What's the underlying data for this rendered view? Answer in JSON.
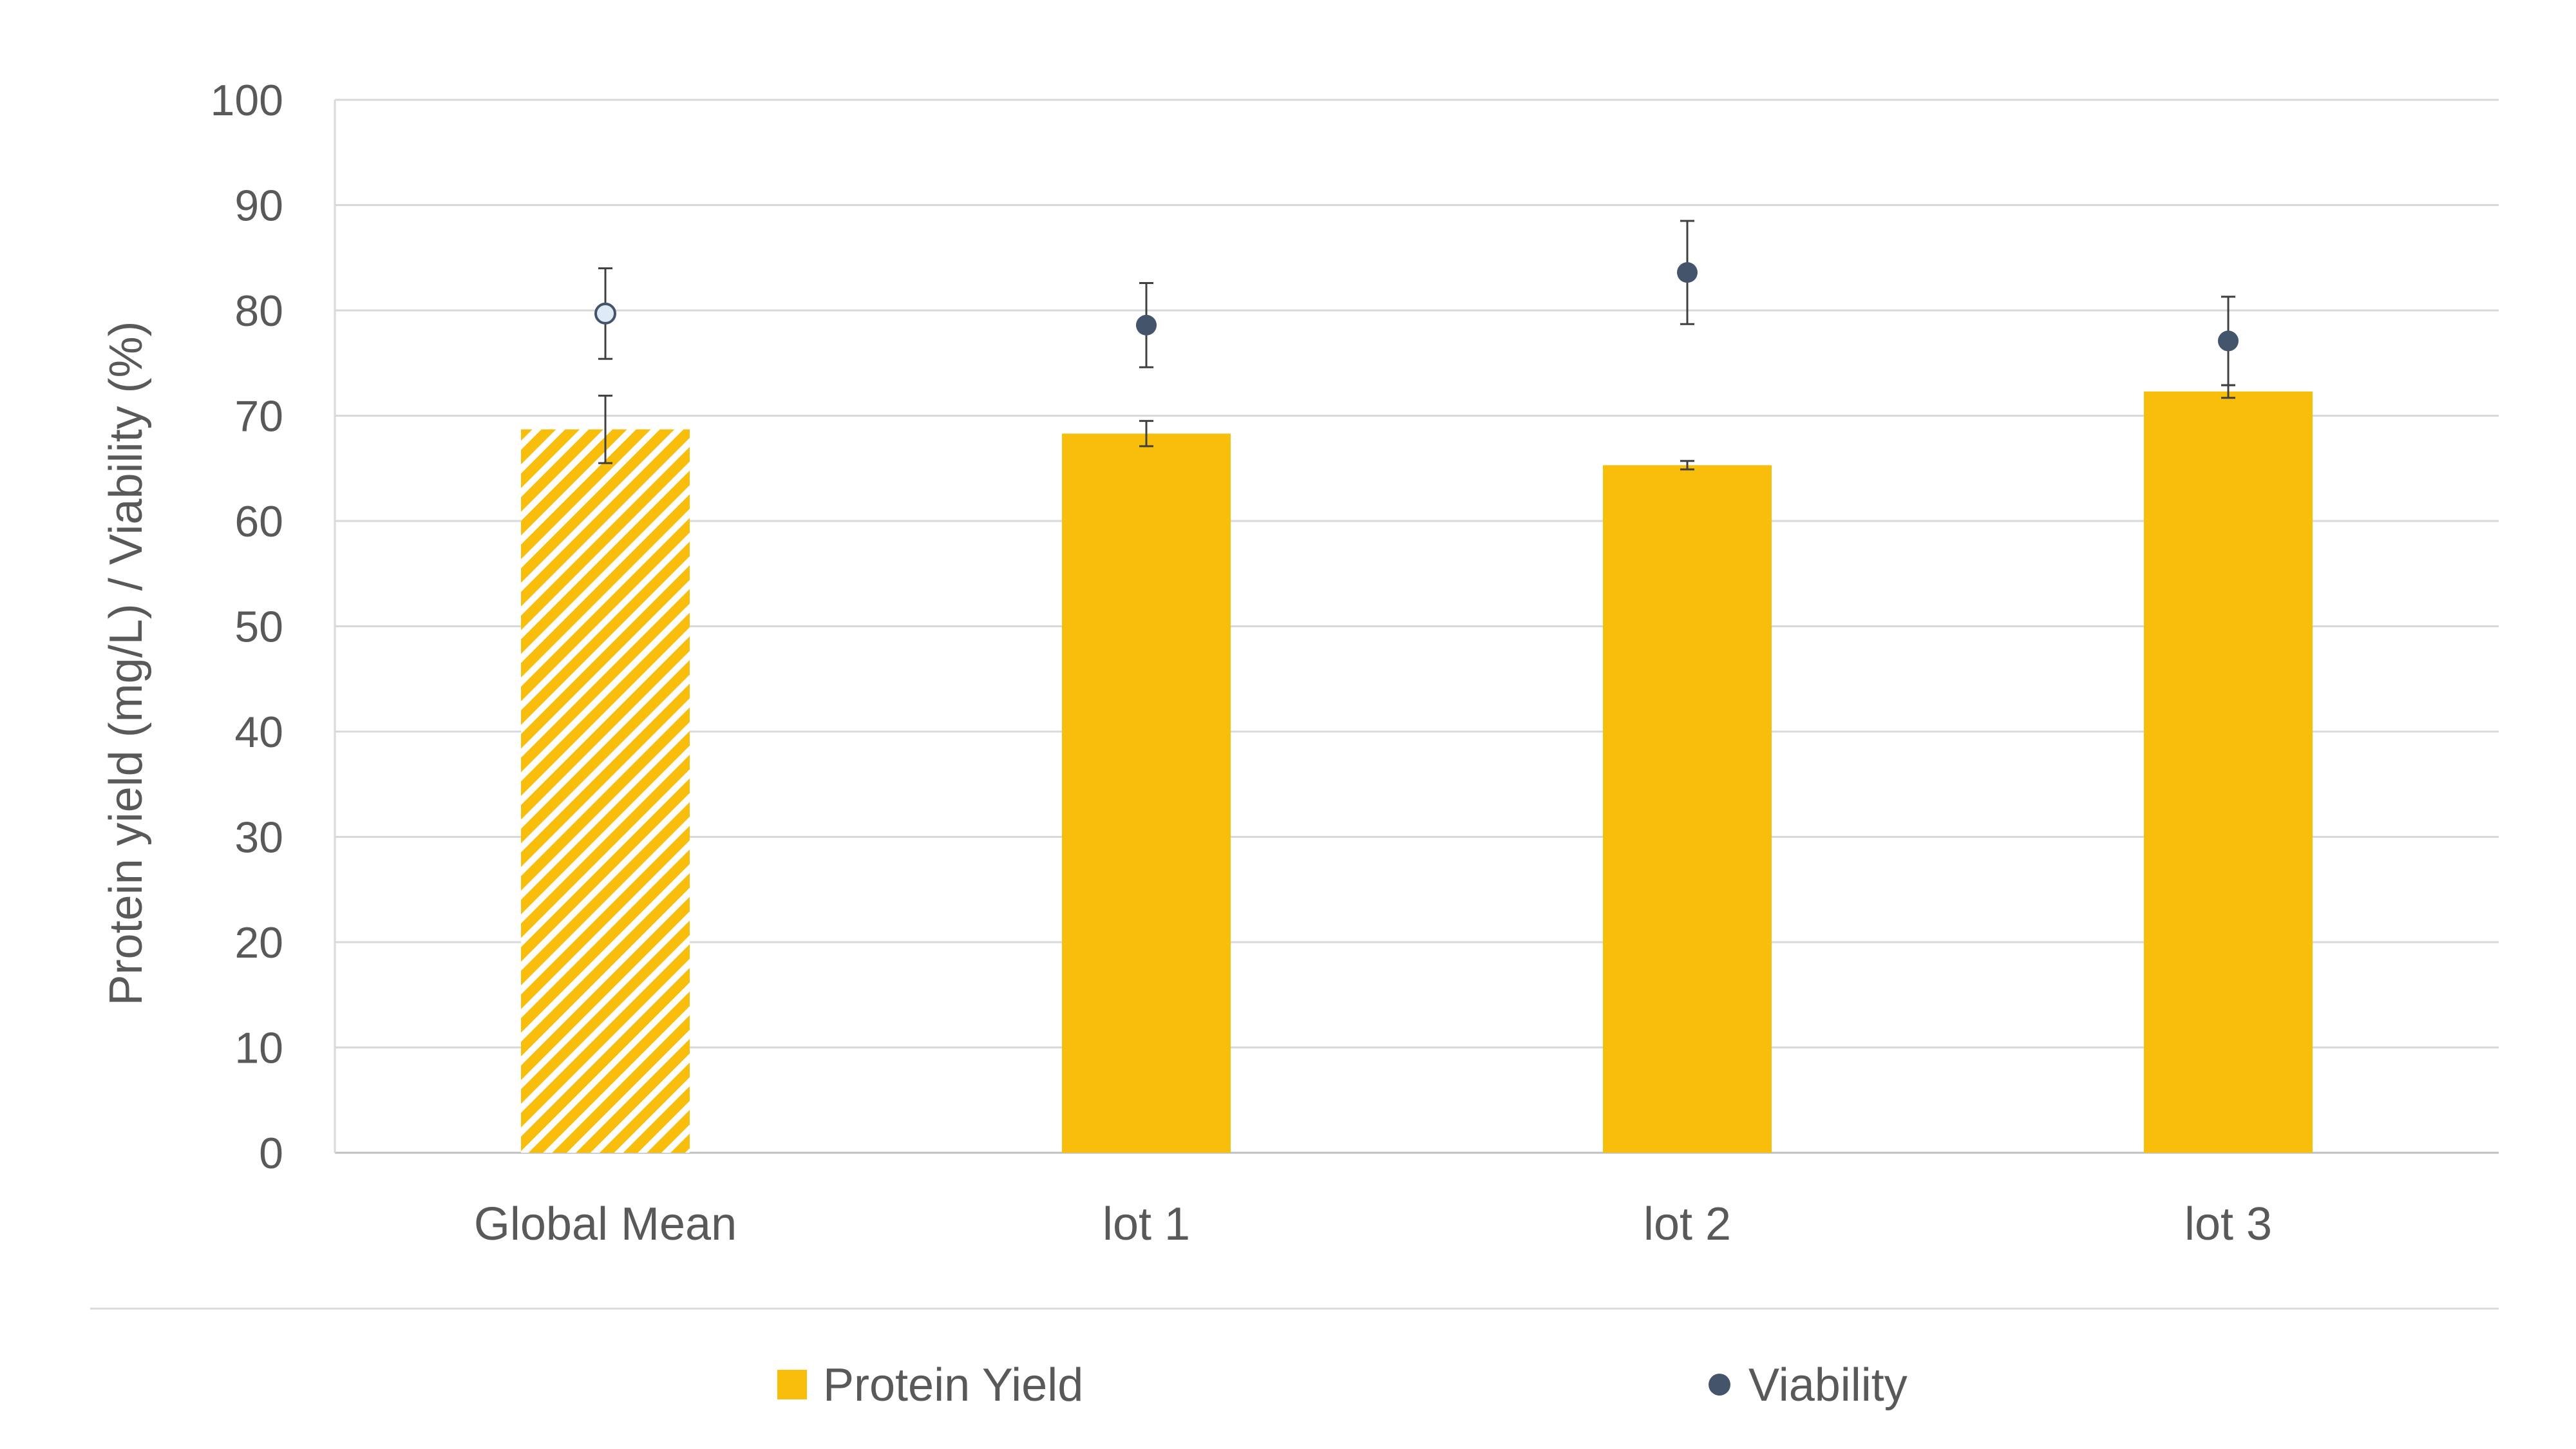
{
  "chart_data": {
    "type": "bar",
    "title": "",
    "xlabel": "",
    "ylabel": "Protein yield (mg/L) / Viability (%)",
    "ylim": [
      0,
      100
    ],
    "yticks": [
      0,
      10,
      20,
      30,
      40,
      50,
      60,
      70,
      80,
      90,
      100
    ],
    "grid": true,
    "legend_position": "bottom",
    "categories": [
      "Global Mean",
      "lot 1",
      "lot 2",
      "lot 3"
    ],
    "series": [
      {
        "name": "Protein Yield",
        "kind": "bar",
        "color": "#F9BE0C",
        "values": [
          68.7,
          68.3,
          65.3,
          72.3
        ],
        "error": [
          3.2,
          1.2,
          0.4,
          0.6
        ],
        "hatched": [
          true,
          false,
          false,
          false
        ]
      },
      {
        "name": "Viability",
        "kind": "scatter",
        "color": "#44546A",
        "values": [
          79.7,
          78.6,
          83.6,
          77.1
        ],
        "error": [
          4.3,
          4.0,
          4.9,
          4.2
        ],
        "hollow": [
          true,
          false,
          false,
          false
        ]
      }
    ]
  }
}
